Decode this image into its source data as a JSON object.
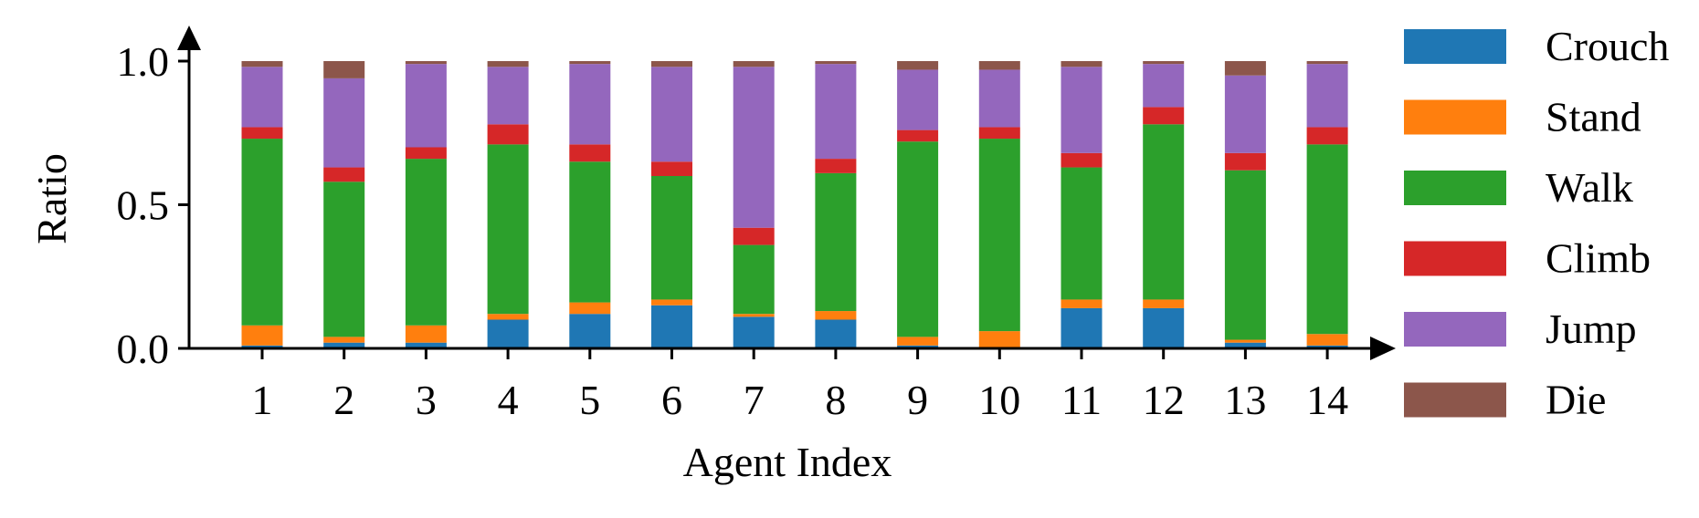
{
  "chart_data": {
    "type": "bar",
    "stacked": true,
    "title": "",
    "xlabel": "Agent Index",
    "ylabel": "Ratio",
    "ylim": [
      0,
      1.0
    ],
    "yticks": [
      "0.0",
      "0.5",
      "1.0"
    ],
    "grid": false,
    "legend_position": "right",
    "categories": [
      "1",
      "2",
      "3",
      "4",
      "5",
      "6",
      "7",
      "8",
      "9",
      "10",
      "11",
      "12",
      "13",
      "14"
    ],
    "series": [
      {
        "name": "Crouch",
        "color": "#1f77b4",
        "values": [
          0.01,
          0.02,
          0.02,
          0.1,
          0.12,
          0.15,
          0.11,
          0.1,
          0.01,
          0.0,
          0.14,
          0.14,
          0.02,
          0.01
        ]
      },
      {
        "name": "Stand",
        "color": "#ff7f0e",
        "values": [
          0.07,
          0.02,
          0.06,
          0.02,
          0.04,
          0.02,
          0.01,
          0.03,
          0.03,
          0.06,
          0.03,
          0.03,
          0.01,
          0.04
        ]
      },
      {
        "name": "Walk",
        "color": "#2ca02c",
        "values": [
          0.65,
          0.54,
          0.58,
          0.59,
          0.49,
          0.43,
          0.24,
          0.48,
          0.68,
          0.67,
          0.46,
          0.61,
          0.59,
          0.66
        ]
      },
      {
        "name": "Climb",
        "color": "#d62728",
        "values": [
          0.04,
          0.05,
          0.04,
          0.07,
          0.06,
          0.05,
          0.06,
          0.05,
          0.04,
          0.04,
          0.05,
          0.06,
          0.06,
          0.06
        ]
      },
      {
        "name": "Jump",
        "color": "#9467bd",
        "values": [
          0.21,
          0.31,
          0.29,
          0.2,
          0.28,
          0.33,
          0.56,
          0.33,
          0.21,
          0.2,
          0.3,
          0.15,
          0.27,
          0.22
        ]
      },
      {
        "name": "Die",
        "color": "#8c564b",
        "values": [
          0.02,
          0.06,
          0.01,
          0.02,
          0.01,
          0.02,
          0.02,
          0.01,
          0.03,
          0.03,
          0.02,
          0.01,
          0.05,
          0.01
        ]
      }
    ]
  }
}
